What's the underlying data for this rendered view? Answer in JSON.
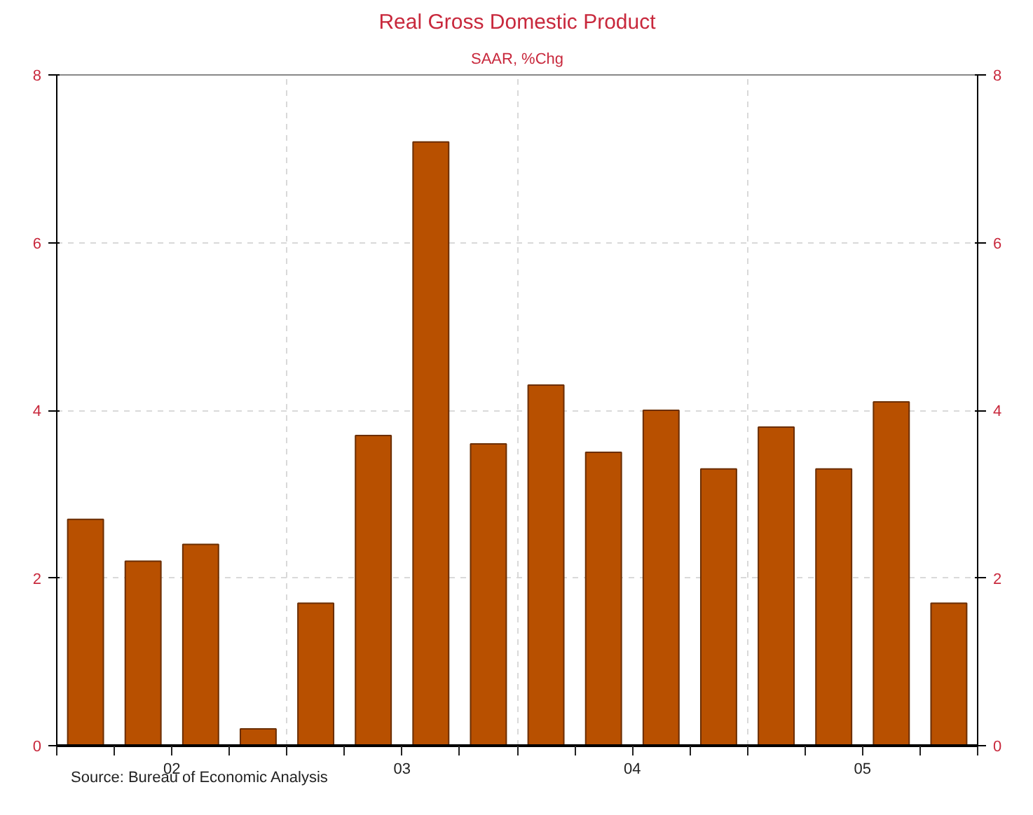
{
  "chart_data": {
    "type": "bar",
    "title": "Real Gross Domestic Product",
    "subtitle": "SAAR, %Chg",
    "categories": [
      null,
      "02",
      null,
      null,
      null,
      "03",
      null,
      null,
      null,
      "04",
      null,
      null,
      null,
      "05",
      null,
      null
    ],
    "series": [
      {
        "color": "#b85000",
        "values": [
          2.7,
          2.2,
          2.4,
          0.2,
          1.7,
          3.7,
          7.2,
          3.6,
          4.3,
          3.5,
          4.0,
          3.3,
          3.8,
          3.3,
          4.1,
          1.7
        ]
      }
    ],
    "ylim": [
      0,
      8
    ],
    "yticks": [
      0,
      2,
      4,
      6,
      8
    ],
    "y2lim": [
      0,
      8
    ],
    "y2ticks": [
      0,
      2,
      4,
      6,
      8
    ],
    "grid": true,
    "annotations": [
      "Source:  Bureau of Economic Analysis"
    ]
  }
}
